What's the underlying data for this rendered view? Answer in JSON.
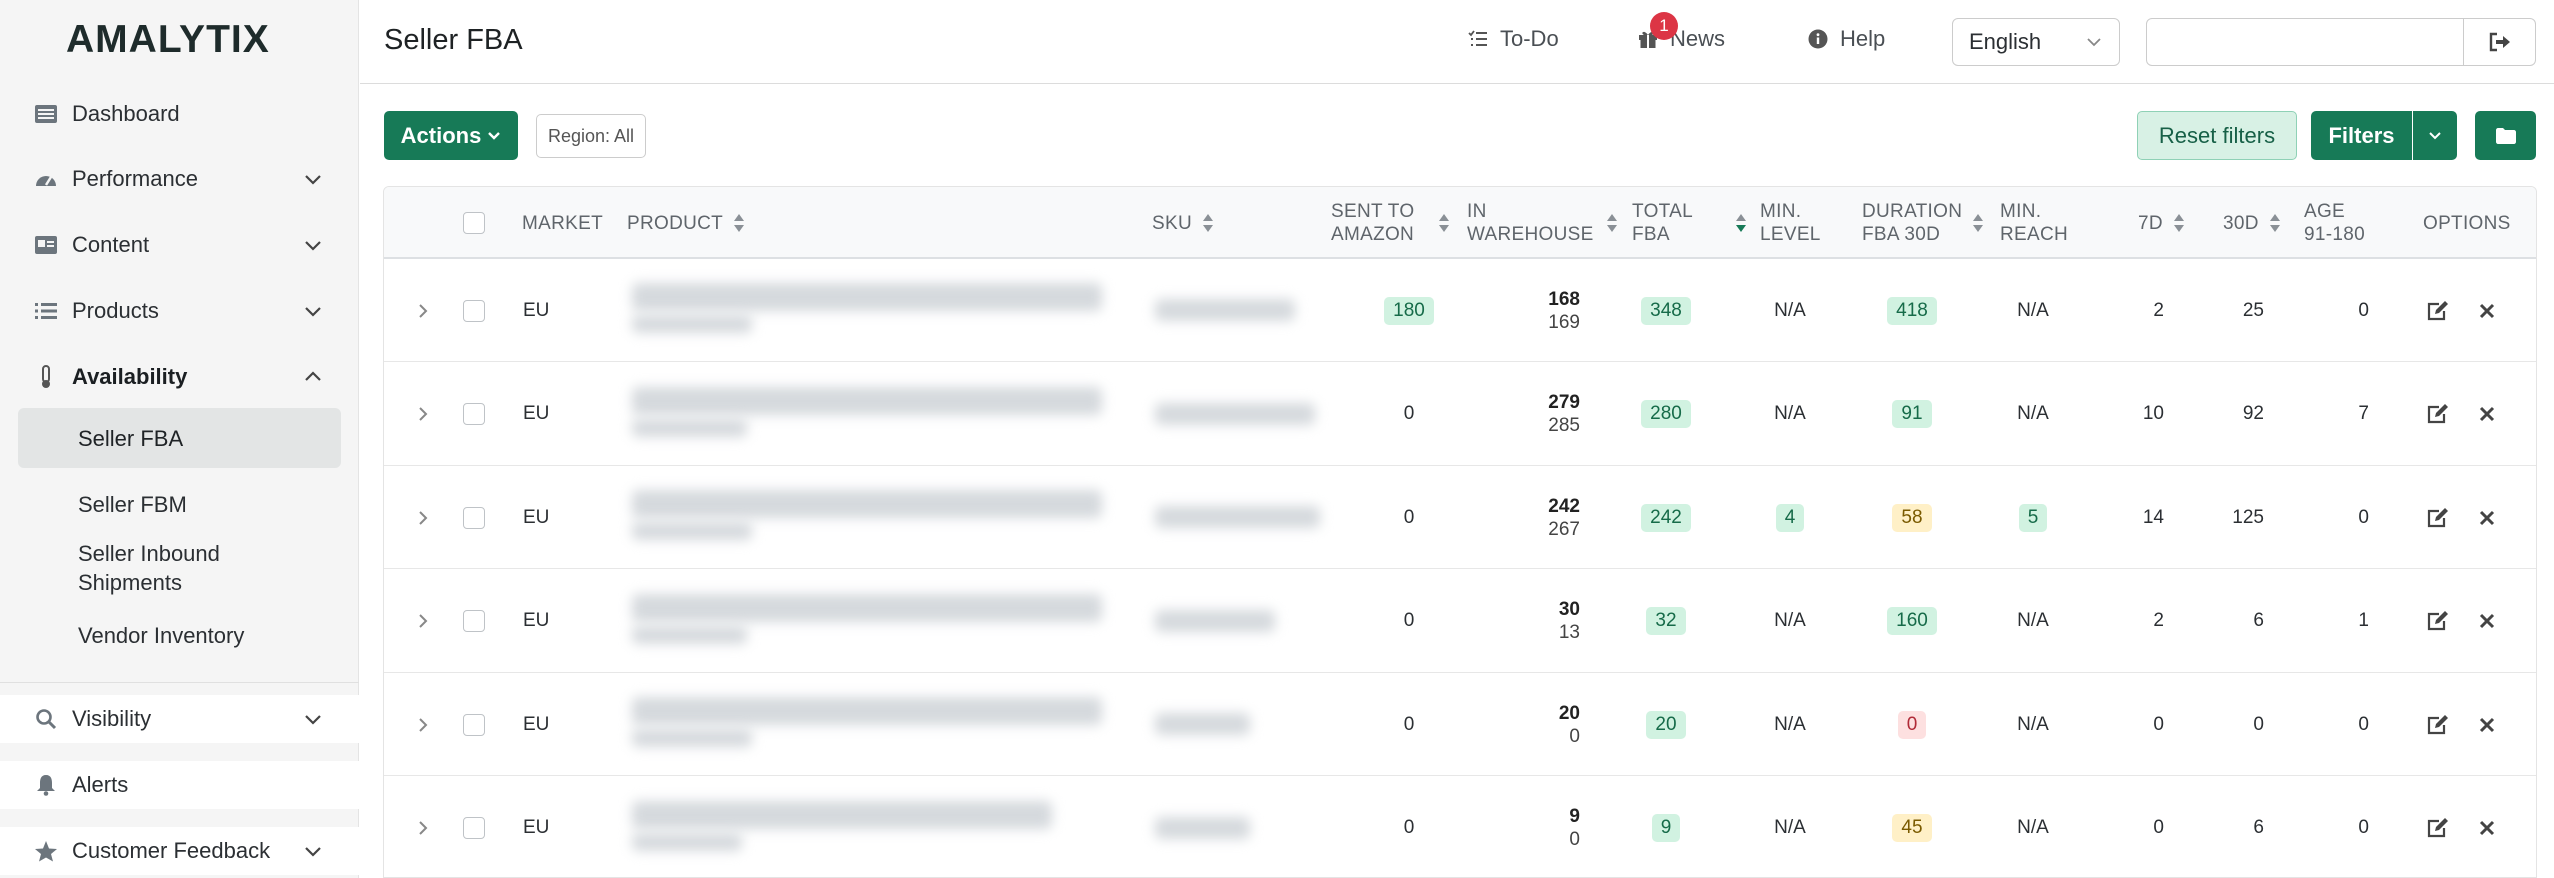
{
  "brand": {
    "logo_text": "AMALYTIX"
  },
  "sidebar": {
    "items": [
      {
        "label": "Dashboard",
        "icon": "dashboard-icon"
      },
      {
        "label": "Performance",
        "icon": "speedometer-icon"
      },
      {
        "label": "Content",
        "icon": "id-card-icon"
      },
      {
        "label": "Products",
        "icon": "list-icon"
      },
      {
        "label": "Availability",
        "icon": "thermometer-icon"
      },
      {
        "label": "Visibility",
        "icon": "search-icon"
      },
      {
        "label": "Alerts",
        "icon": "bell-icon"
      },
      {
        "label": "Customer Feedback",
        "icon": "star-icon"
      }
    ],
    "sub_items": [
      "Seller FBA",
      "Seller FBM",
      "Seller Inbound Shipments",
      "Vendor Inventory"
    ]
  },
  "header": {
    "title": "Seller FBA",
    "todo_label": "To-Do",
    "news_label": "News",
    "news_badge": "1",
    "help_label": "Help",
    "language": "English",
    "search_value": ""
  },
  "toolbar": {
    "actions_label": "Actions",
    "region_label": "Region: All",
    "reset_label": "Reset filters",
    "filters_label": "Filters"
  },
  "table": {
    "columns": {
      "market": "MARKET",
      "product": "PRODUCT",
      "sku": "SKU",
      "sent_1": "SENT TO",
      "sent_2": "AMAZON",
      "wh_1": "IN",
      "wh_2": "WAREHOUSE",
      "total_1": "TOTAL",
      "total_2": "FBA",
      "minlvl_1": "MIN.",
      "minlvl_2": "LEVEL",
      "dur_1": "DURATION",
      "dur_2": "FBA 30D",
      "reach_1": "MIN.",
      "reach_2": "REACH",
      "d7": "7D",
      "d30": "30D",
      "age_1": "AGE",
      "age_2": "91-180",
      "options": "OPTIONS"
    },
    "rows": [
      {
        "market": "EU",
        "sent": "180",
        "sent_pill": "green",
        "wh_a": "168",
        "wh_b": "169",
        "total": "348",
        "min_level": "N/A",
        "min_level_pill": "",
        "duration": "418",
        "duration_pill": "green",
        "reach": "N/A",
        "reach_pill": "",
        "d7": "2",
        "d30": "25",
        "age": "0"
      },
      {
        "market": "EU",
        "sent": "0",
        "sent_pill": "",
        "wh_a": "279",
        "wh_b": "285",
        "total": "280",
        "min_level": "N/A",
        "min_level_pill": "",
        "duration": "91",
        "duration_pill": "green",
        "reach": "N/A",
        "reach_pill": "",
        "d7": "10",
        "d30": "92",
        "age": "7"
      },
      {
        "market": "EU",
        "sent": "0",
        "sent_pill": "",
        "wh_a": "242",
        "wh_b": "267",
        "total": "242",
        "min_level": "4",
        "min_level_pill": "green",
        "duration": "58",
        "duration_pill": "yellow",
        "reach": "5",
        "reach_pill": "green",
        "d7": "14",
        "d30": "125",
        "age": "0"
      },
      {
        "market": "EU",
        "sent": "0",
        "sent_pill": "",
        "wh_a": "30",
        "wh_b": "13",
        "total": "32",
        "min_level": "N/A",
        "min_level_pill": "",
        "duration": "160",
        "duration_pill": "green",
        "reach": "N/A",
        "reach_pill": "",
        "d7": "2",
        "d30": "6",
        "age": "1"
      },
      {
        "market": "EU",
        "sent": "0",
        "sent_pill": "",
        "wh_a": "20",
        "wh_b": "0",
        "total": "20",
        "min_level": "N/A",
        "min_level_pill": "",
        "duration": "0",
        "duration_pill": "red",
        "reach": "N/A",
        "reach_pill": "",
        "d7": "0",
        "d30": "0",
        "age": "0"
      },
      {
        "market": "EU",
        "sent": "0",
        "sent_pill": "",
        "wh_a": "9",
        "wh_b": "0",
        "total": "9",
        "min_level": "N/A",
        "min_level_pill": "",
        "duration": "45",
        "duration_pill": "yellow",
        "reach": "N/A",
        "reach_pill": "",
        "d7": "0",
        "d30": "6",
        "age": "0"
      }
    ]
  },
  "colors": {
    "brand_green": "#177a57",
    "pill_green": "#d1f2e1",
    "pill_yellow": "#fff0c7",
    "pill_red": "#fde0e0",
    "badge_red": "#dc3545"
  }
}
